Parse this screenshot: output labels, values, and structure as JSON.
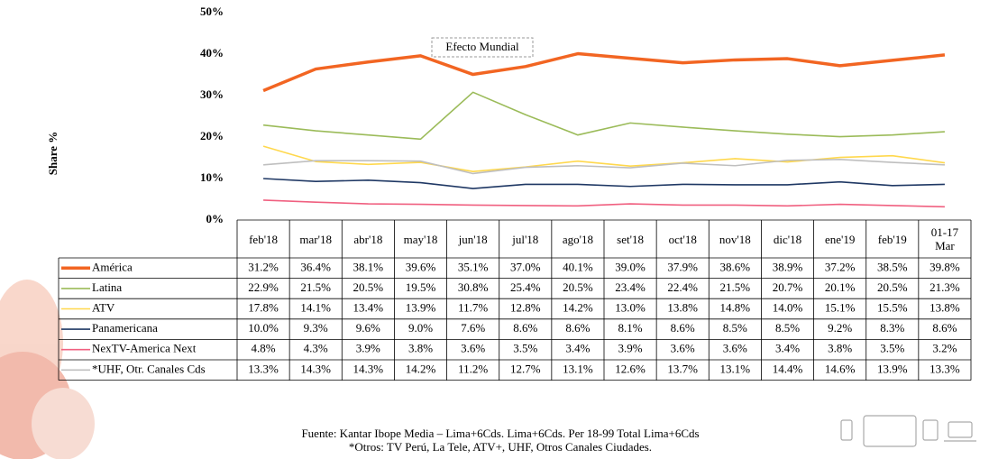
{
  "chart_data": {
    "type": "line",
    "y_label": "Share %",
    "annotation": "Efecto Mundial",
    "source": "Fuente: Kantar Ibope Media – Lima+6Cds. Lima+6Cds. Per 18-99 Total Lima+6Cds",
    "note": "*Otros: TV Perú, La Tele, ATV+, UHF, Otros Canales Ciudades.",
    "categories": [
      "feb'18",
      "mar'18",
      "abr'18",
      "may'18",
      "jun'18",
      "jul'18",
      "ago'18",
      "set'18",
      "oct'18",
      "nov'18",
      "dic'18",
      "ene'19",
      "feb'19",
      "01-17 Mar"
    ],
    "ylim": [
      0,
      50
    ],
    "yticks": [
      {
        "value": 0,
        "label": "0%"
      },
      {
        "value": 10,
        "label": "10%"
      },
      {
        "value": 20,
        "label": "20%"
      },
      {
        "value": 30,
        "label": "30%"
      },
      {
        "value": 40,
        "label": "40%"
      },
      {
        "value": 50,
        "label": "50%"
      }
    ],
    "grid": false,
    "series": [
      {
        "name": "América",
        "color": "#f26522",
        "values": [
          31.2,
          36.4,
          38.1,
          39.6,
          35.1,
          37.0,
          40.1,
          39.0,
          37.9,
          38.6,
          38.9,
          37.2,
          38.5,
          39.8
        ],
        "value_labels": [
          "31.2%",
          "36.4%",
          "38.1%",
          "39.6%",
          "35.1%",
          "37.0%",
          "40.1%",
          "39.0%",
          "37.9%",
          "38.6%",
          "38.9%",
          "37.2%",
          "38.5%",
          "39.8%"
        ]
      },
      {
        "name": "Latina",
        "color": "#9bbb59",
        "values": [
          22.9,
          21.5,
          20.5,
          19.5,
          30.8,
          25.4,
          20.5,
          23.4,
          22.4,
          21.5,
          20.7,
          20.1,
          20.5,
          21.3
        ],
        "value_labels": [
          "22.9%",
          "21.5%",
          "20.5%",
          "19.5%",
          "30.8%",
          "25.4%",
          "20.5%",
          "23.4%",
          "22.4%",
          "21.5%",
          "20.7%",
          "20.1%",
          "20.5%",
          "21.3%"
        ]
      },
      {
        "name": "ATV",
        "color": "#ffd84d",
        "values": [
          17.8,
          14.1,
          13.4,
          13.9,
          11.7,
          12.8,
          14.2,
          13.0,
          13.8,
          14.8,
          14.0,
          15.1,
          15.5,
          13.8
        ],
        "value_labels": [
          "17.8%",
          "14.1%",
          "13.4%",
          "13.9%",
          "11.7%",
          "12.8%",
          "14.2%",
          "13.0%",
          "13.8%",
          "14.8%",
          "14.0%",
          "15.1%",
          "15.5%",
          "13.8%"
        ]
      },
      {
        "name": "Panamericana",
        "color": "#1f3864",
        "values": [
          10.0,
          9.3,
          9.6,
          9.0,
          7.6,
          8.6,
          8.6,
          8.1,
          8.6,
          8.5,
          8.5,
          9.2,
          8.3,
          8.6
        ],
        "value_labels": [
          "10.0%",
          "9.3%",
          "9.6%",
          "9.0%",
          "7.6%",
          "8.6%",
          "8.6%",
          "8.1%",
          "8.6%",
          "8.5%",
          "8.5%",
          "9.2%",
          "8.3%",
          "8.6%"
        ]
      },
      {
        "name": "NexTV-America Next",
        "color": "#f06080",
        "values": [
          4.8,
          4.3,
          3.9,
          3.8,
          3.6,
          3.5,
          3.4,
          3.9,
          3.6,
          3.6,
          3.4,
          3.8,
          3.5,
          3.2
        ],
        "value_labels": [
          "4.8%",
          "4.3%",
          "3.9%",
          "3.8%",
          "3.6%",
          "3.5%",
          "3.4%",
          "3.9%",
          "3.6%",
          "3.6%",
          "3.4%",
          "3.8%",
          "3.5%",
          "3.2%"
        ]
      },
      {
        "name": "*UHF, Otr. Canales Cds",
        "color": "#bfbfbf",
        "values": [
          13.3,
          14.3,
          14.3,
          14.2,
          11.2,
          12.7,
          13.1,
          12.6,
          13.7,
          13.1,
          14.4,
          14.6,
          13.9,
          13.3
        ],
        "value_labels": [
          "13.3%",
          "14.3%",
          "14.3%",
          "14.2%",
          "11.2%",
          "12.7%",
          "13.1%",
          "12.6%",
          "13.7%",
          "13.1%",
          "14.4%",
          "14.6%",
          "13.9%",
          "13.3%"
        ]
      }
    ]
  }
}
